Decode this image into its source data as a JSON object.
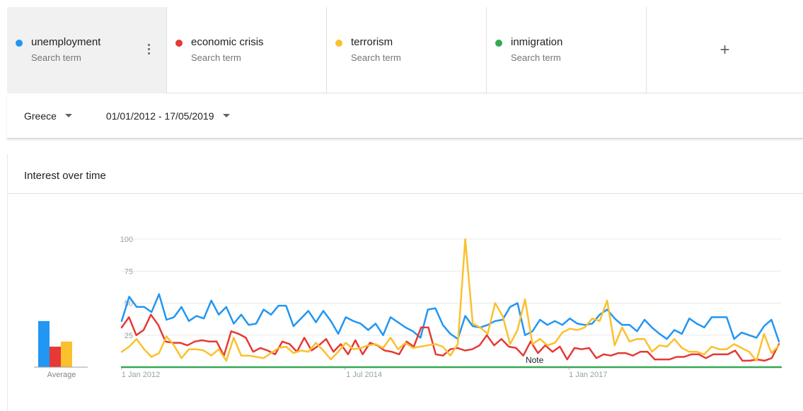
{
  "terms": [
    {
      "name": "unemployment",
      "sub": "Search term",
      "color": "#2196f3"
    },
    {
      "name": "economic crisis",
      "sub": "Search term",
      "color": "#e53935"
    },
    {
      "name": "terrorism",
      "sub": "Search term",
      "color": "#fbc02d"
    },
    {
      "name": "inmigration",
      "sub": "Search term",
      "color": "#34a853"
    }
  ],
  "add_term_icon": "plus-icon",
  "filters": {
    "region": "Greece",
    "date_range": "01/01/2012 - 17/05/2019"
  },
  "card": {
    "title": "Interest over time",
    "average_label": "Average",
    "note_label": "Note"
  },
  "chart_data": {
    "type": "line",
    "xlim": [
      "2012-01-01",
      "2019-05-17"
    ],
    "ylim": [
      0,
      100
    ],
    "y_ticks": [
      25,
      50,
      75,
      100
    ],
    "x_ticks": [
      {
        "date": "2012-01-01",
        "label": "1 Jan 2012"
      },
      {
        "date": "2014-07-01",
        "label": "1 Jul 2014"
      },
      {
        "date": "2017-01-01",
        "label": "1 Jan 2017"
      }
    ],
    "grid": true,
    "note": {
      "date": "2016-01-01",
      "label": "Note"
    },
    "averages": [
      {
        "name": "unemployment",
        "value": 36,
        "color": "#2196f3"
      },
      {
        "name": "economic crisis",
        "value": 16,
        "color": "#e53935"
      },
      {
        "name": "terrorism",
        "value": 20,
        "color": "#fbc02d"
      }
    ],
    "series": [
      {
        "name": "unemployment",
        "color": "#2196f3",
        "values": [
          36,
          55,
          47,
          47,
          43,
          57,
          37,
          39,
          47,
          36,
          40,
          38,
          52,
          41,
          47,
          34,
          41,
          33,
          34,
          45,
          41,
          48,
          48,
          32,
          38,
          44,
          35,
          44,
          36,
          26,
          39,
          36,
          34,
          29,
          34,
          25,
          39,
          35,
          31,
          28,
          23,
          45,
          46,
          33,
          26,
          22,
          40,
          32,
          31,
          33,
          36,
          37,
          47,
          50,
          25,
          28,
          37,
          33,
          36,
          33,
          38,
          34,
          33,
          34,
          41,
          45,
          38,
          33,
          33,
          28,
          37,
          31,
          26,
          22,
          29,
          26,
          38,
          34,
          31,
          39,
          39,
          39,
          22,
          27,
          25,
          23,
          32,
          37,
          20
        ]
      },
      {
        "name": "economic crisis",
        "color": "#e53935",
        "values": [
          31,
          39,
          25,
          29,
          41,
          33,
          20,
          19,
          19,
          17,
          20,
          21,
          20,
          20,
          9,
          28,
          26,
          23,
          12,
          15,
          13,
          10,
          20,
          18,
          12,
          23,
          13,
          17,
          22,
          12,
          18,
          10,
          21,
          10,
          19,
          17,
          13,
          12,
          10,
          20,
          16,
          31,
          31,
          10,
          9,
          14,
          15,
          13,
          14,
          17,
          25,
          17,
          22,
          16,
          15,
          9,
          20,
          11,
          17,
          12,
          16,
          6,
          15,
          14,
          15,
          7,
          10,
          9,
          11,
          11,
          9,
          12,
          12,
          6,
          6,
          6,
          8,
          8,
          10,
          10,
          7,
          10,
          10,
          10,
          13,
          5,
          5,
          6,
          5,
          7,
          18
        ]
      },
      {
        "name": "terrorism",
        "color": "#fbc02d",
        "values": [
          12,
          16,
          22,
          14,
          8,
          11,
          24,
          17,
          7,
          14,
          14,
          13,
          9,
          14,
          5,
          23,
          9,
          9,
          8,
          7,
          11,
          15,
          16,
          11,
          13,
          12,
          19,
          13,
          6,
          12,
          19,
          14,
          15,
          17,
          18,
          15,
          23,
          14,
          19,
          15,
          16,
          17,
          18,
          16,
          9,
          18,
          100,
          34,
          31,
          26,
          50,
          40,
          18,
          29,
          53,
          18,
          22,
          17,
          19,
          27,
          30,
          29,
          31,
          38,
          36,
          52,
          17,
          31,
          20,
          22,
          22,
          12,
          17,
          16,
          22,
          15,
          12,
          12,
          10,
          16,
          14,
          14,
          18,
          15,
          12,
          5,
          26,
          11,
          17
        ]
      },
      {
        "name": "inmigration",
        "color": "#34a853",
        "values": [
          0,
          0
        ]
      }
    ]
  }
}
